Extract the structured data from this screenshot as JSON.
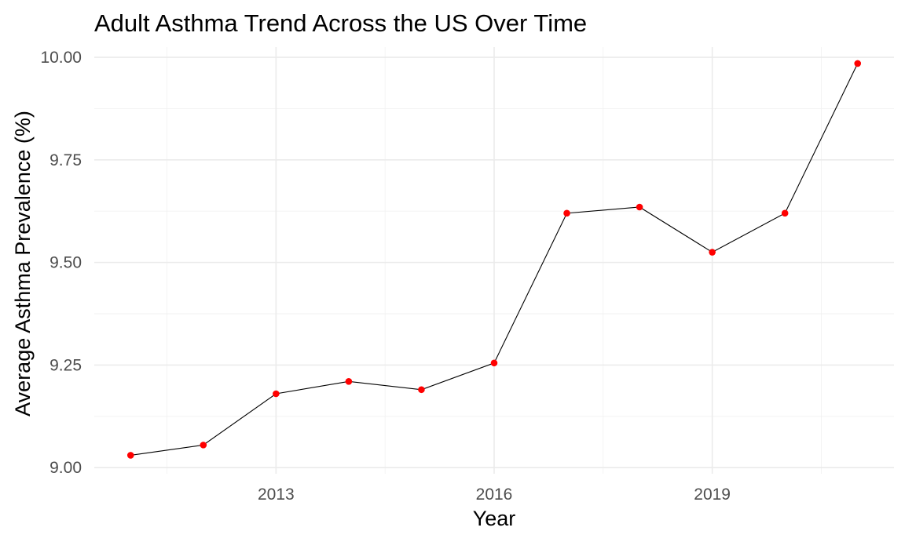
{
  "chart_data": {
    "type": "line",
    "title": "Adult Asthma Trend Across the US Over Time",
    "xlabel": "Year",
    "ylabel": "Average Asthma Prevalence (%)",
    "x": [
      2011,
      2012,
      2013,
      2014,
      2015,
      2016,
      2017,
      2018,
      2019,
      2020,
      2021
    ],
    "series": [
      {
        "values": [
          9.03,
          9.055,
          9.18,
          9.21,
          9.19,
          9.255,
          9.62,
          9.635,
          9.525,
          9.62,
          9.985
        ]
      }
    ],
    "xlim": [
      2010.5,
      2021.5
    ],
    "ylim": [
      8.985,
      10.025
    ],
    "x_ticks": [
      2013,
      2016,
      2019
    ],
    "x_tick_labels": [
      "2013",
      "2016",
      "2019"
    ],
    "x_minor_ticks": [
      2011.5,
      2014.5,
      2017.5,
      2020.5
    ],
    "y_ticks": [
      9.0,
      9.25,
      9.5,
      9.75,
      10.0
    ],
    "y_tick_labels": [
      "9.00",
      "9.25",
      "9.50",
      "9.75",
      "10.00"
    ],
    "y_minor_ticks": [
      9.125,
      9.375,
      9.625,
      9.875
    ],
    "grid": true,
    "legend": "none",
    "colors": {
      "line": "#000000",
      "points": "#ff0000",
      "grid_major": "#ebebeb",
      "grid_minor": "#f2f2f2",
      "tick_text": "#4d4d4d",
      "background": "#ffffff"
    }
  }
}
